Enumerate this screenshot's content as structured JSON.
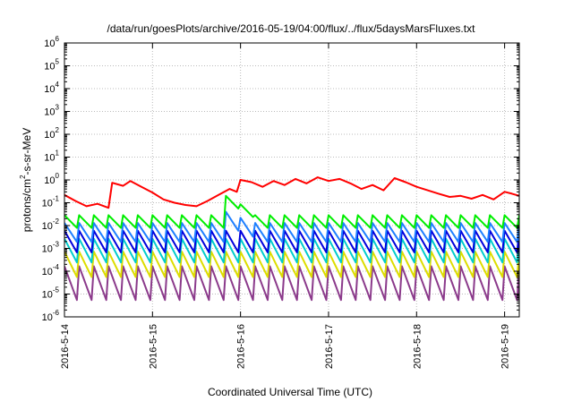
{
  "chart_data": {
    "type": "line",
    "title": "/data/run/goesPlots/archive/2016-05-19/04:00/flux/../flux/5daysMarsFluxes.txt",
    "xlabel": "Coordinated Universal Time (UTC)",
    "ylabel": "protons/cm2-s-sr-MeV",
    "yscale": "log",
    "ylim": [
      1e-06,
      1000000.0
    ],
    "xlim": [
      "2016-05-14T00:00",
      "2016-05-19T04:00"
    ],
    "grid": true,
    "legend": "none",
    "x_ticks": [
      "2016-5-14",
      "2016-5-15",
      "2016-5-16",
      "2016-5-17",
      "2016-5-18",
      "2016-5-19"
    ],
    "y_ticks": [
      {
        "base": "10",
        "exp": "-6"
      },
      {
        "base": "10",
        "exp": "-5"
      },
      {
        "base": "10",
        "exp": "-4"
      },
      {
        "base": "10",
        "exp": "-3"
      },
      {
        "base": "10",
        "exp": "-2"
      },
      {
        "base": "10",
        "exp": "-1"
      },
      {
        "base": "10",
        "exp": "0"
      },
      {
        "base": "10",
        "exp": "1"
      },
      {
        "base": "10",
        "exp": "2"
      },
      {
        "base": "10",
        "exp": "3"
      },
      {
        "base": "10",
        "exp": "4"
      },
      {
        "base": "10",
        "exp": "5"
      },
      {
        "base": "10",
        "exp": "6"
      }
    ],
    "series": [
      {
        "color": "#ff0000",
        "values": [
          [
            "2016-05-14T00:00",
            0.22
          ],
          [
            "2016-05-14T03:00",
            0.12
          ],
          [
            "2016-05-14T06:00",
            0.07
          ],
          [
            "2016-05-14T09:00",
            0.09
          ],
          [
            "2016-05-14T12:00",
            0.06
          ],
          [
            "2016-05-14T13:00",
            0.75
          ],
          [
            "2016-05-14T16:00",
            0.55
          ],
          [
            "2016-05-14T18:00",
            0.9
          ],
          [
            "2016-05-14T21:00",
            0.5
          ],
          [
            "2016-05-15T00:00",
            0.28
          ],
          [
            "2016-05-15T03:00",
            0.14
          ],
          [
            "2016-05-15T06:00",
            0.1
          ],
          [
            "2016-05-15T09:00",
            0.08
          ],
          [
            "2016-05-15T12:00",
            0.07
          ],
          [
            "2016-05-15T15:00",
            0.12
          ],
          [
            "2016-05-15T18:00",
            0.22
          ],
          [
            "2016-05-15T21:00",
            0.4
          ],
          [
            "2016-05-15T23:00",
            0.3
          ],
          [
            "2016-05-16T00:00",
            1.0
          ],
          [
            "2016-05-16T03:00",
            0.8
          ],
          [
            "2016-05-16T06:00",
            0.5
          ],
          [
            "2016-05-16T09:00",
            0.9
          ],
          [
            "2016-05-16T12:00",
            0.6
          ],
          [
            "2016-05-16T15:00",
            1.1
          ],
          [
            "2016-05-16T18:00",
            0.7
          ],
          [
            "2016-05-16T21:00",
            1.3
          ],
          [
            "2016-05-17T00:00",
            0.9
          ],
          [
            "2016-05-17T03:00",
            1.1
          ],
          [
            "2016-05-17T06:00",
            0.7
          ],
          [
            "2016-05-17T09:00",
            0.4
          ],
          [
            "2016-05-17T12:00",
            0.6
          ],
          [
            "2016-05-17T15:00",
            0.35
          ],
          [
            "2016-05-17T18:00",
            1.2
          ],
          [
            "2016-05-17T21:00",
            0.8
          ],
          [
            "2016-05-18T00:00",
            0.5
          ],
          [
            "2016-05-18T03:00",
            0.35
          ],
          [
            "2016-05-18T06:00",
            0.25
          ],
          [
            "2016-05-18T09:00",
            0.18
          ],
          [
            "2016-05-18T12:00",
            0.2
          ],
          [
            "2016-05-18T15:00",
            0.15
          ],
          [
            "2016-05-18T18:00",
            0.22
          ],
          [
            "2016-05-18T21:00",
            0.14
          ],
          [
            "2016-05-19T00:00",
            0.3
          ],
          [
            "2016-05-19T02:00",
            0.25
          ],
          [
            "2016-05-19T04:00",
            0.2
          ]
        ]
      },
      {
        "color": "#00ee00",
        "base": 0.015,
        "amp": 1.9,
        "jump": {
          "x": "2016-05-15T20:00",
          "peak": 0.2
        }
      },
      {
        "color": "#1e7fff",
        "base": 0.005,
        "amp": 2.6,
        "jump": {
          "x": "2016-05-15T20:00",
          "peak": 0.04
        }
      },
      {
        "color": "#0000dd",
        "base": 0.002,
        "amp": 3.0
      },
      {
        "color": "#00cccc",
        "base": 0.0008,
        "amp": 3.3
      },
      {
        "color": "#dddd00",
        "base": 0.0002,
        "amp": 3.6
      },
      {
        "color": "#8b3a8b",
        "base": 3e-05,
        "amp": 5.5
      }
    ]
  }
}
